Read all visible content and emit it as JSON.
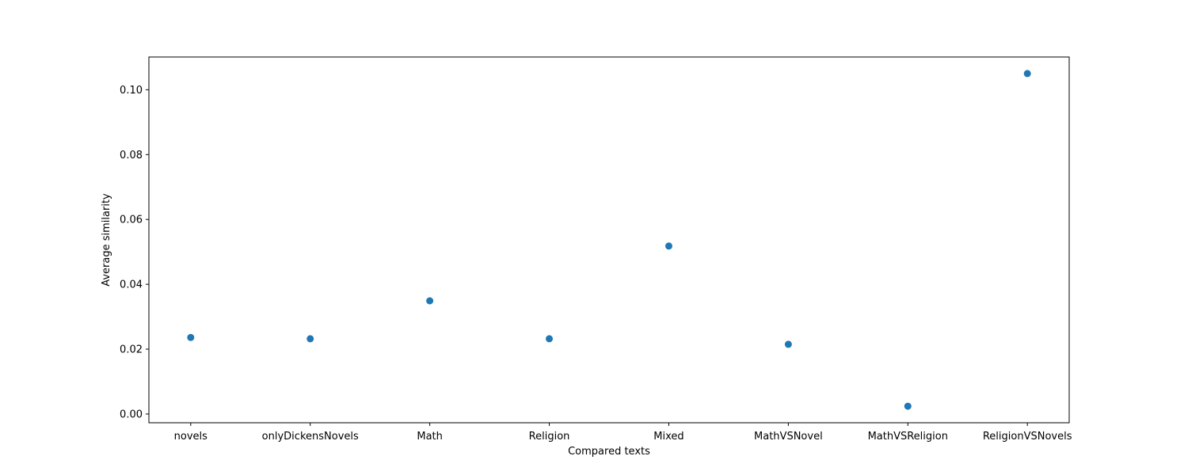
{
  "chart_data": {
    "type": "scatter",
    "title": "",
    "xlabel": "Compared texts",
    "ylabel": "Average similarity",
    "categories": [
      "novels",
      "onlyDickensNovels",
      "Math",
      "Religion",
      "Mixed",
      "MathVSNovel",
      "MathVSReligion",
      "ReligionVSNovels"
    ],
    "series": [
      {
        "values": [
          0.0236,
          0.0232,
          0.0349,
          0.0232,
          0.0518,
          0.0215,
          0.0024,
          0.105
        ]
      }
    ],
    "ylim": [
      -0.0027,
      0.1101
    ],
    "yticks": [
      0.0,
      0.02,
      0.04,
      0.06,
      0.08,
      0.1
    ],
    "ytick_labels": [
      "0.00",
      "0.02",
      "0.04",
      "0.06",
      "0.08",
      "0.10"
    ],
    "grid": false,
    "legend": "none",
    "colors": {
      "marker": "#1f77b4",
      "axes": "#000000",
      "background": "#ffffff"
    }
  }
}
